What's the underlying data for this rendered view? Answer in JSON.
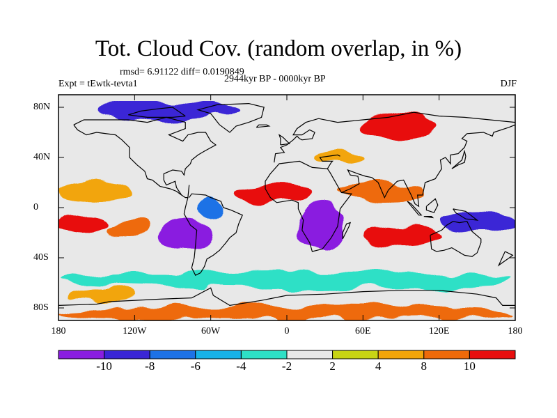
{
  "figure": {
    "title": "Tot. Cloud Cov. (random overlap, in %)",
    "stats": "rmsd= 6.91122 diff= 0.0190849",
    "experiment": "Expt = tEwtk-tevta1",
    "period": "2944kyr BP - 0000kyr BP",
    "season": "DJF"
  },
  "map": {
    "projection": "cylindrical equidistant",
    "lon_range": [
      -180,
      180
    ],
    "lat_range": [
      -90,
      90
    ],
    "lon_ticks": [
      "180",
      "120W",
      "60W",
      "0",
      "60E",
      "120E",
      "180"
    ],
    "lat_ticks": [
      "80N",
      "40N",
      "0",
      "40S",
      "80S"
    ],
    "coastlines": true
  },
  "colorbar": {
    "labels": [
      "-10",
      "-8",
      "-6",
      "-4",
      "-2",
      "2",
      "4",
      "8",
      "10"
    ],
    "colors": [
      "#8a1ee0",
      "#3a26d6",
      "#1e72e6",
      "#18b2e8",
      "#2ee0c6",
      "#e8e8e8",
      "#c8d414",
      "#f2a50a",
      "#ee6a0a",
      "#e80e0e"
    ]
  },
  "chart_data": {
    "type": "heatmap",
    "title": "Tot. Cloud Cov. (random overlap, in %)",
    "xlabel": "",
    "ylabel": "",
    "levels": [
      -10,
      -8,
      -6,
      -4,
      -2,
      2,
      4,
      8,
      10
    ],
    "regions": [
      {
        "lon": [
          -180,
          -140
        ],
        "lat": [
          -20,
          -5
        ],
        "value": 12
      },
      {
        "lon": [
          -140,
          -110
        ],
        "lat": [
          -25,
          -10
        ],
        "value": 9
      },
      {
        "lon": [
          -180,
          -120
        ],
        "lat": [
          5,
          20
        ],
        "value": 6
      },
      {
        "lon": [
          -100,
          -60
        ],
        "lat": [
          -35,
          -10
        ],
        "value": -11
      },
      {
        "lon": [
          -70,
          -50
        ],
        "lat": [
          -10,
          10
        ],
        "value": -7
      },
      {
        "lon": [
          10,
          45
        ],
        "lat": [
          -35,
          5
        ],
        "value": -11
      },
      {
        "lon": [
          -40,
          20
        ],
        "lat": [
          5,
          20
        ],
        "value": 11
      },
      {
        "lon": [
          40,
          110
        ],
        "lat": [
          5,
          20
        ],
        "value": 9
      },
      {
        "lon": [
          60,
          120
        ],
        "lat": [
          -30,
          -15
        ],
        "value": 11
      },
      {
        "lon": [
          120,
          180
        ],
        "lat": [
          -20,
          -5
        ],
        "value": -10
      },
      {
        "lon": [
          -180,
          180
        ],
        "lat": [
          -65,
          -50
        ],
        "value": -4
      },
      {
        "lon": [
          -170,
          -120
        ],
        "lat": [
          -75,
          -65
        ],
        "value": 5
      },
      {
        "lon": [
          -150,
          -40
        ],
        "lat": [
          70,
          85
        ],
        "value": -9
      },
      {
        "lon": [
          60,
          120
        ],
        "lat": [
          55,
          75
        ],
        "value": 10
      },
      {
        "lon": [
          20,
          60
        ],
        "lat": [
          35,
          45
        ],
        "value": 6
      },
      {
        "lon": [
          -180,
          180
        ],
        "lat": [
          -90,
          -78
        ],
        "value": 9
      }
    ]
  }
}
